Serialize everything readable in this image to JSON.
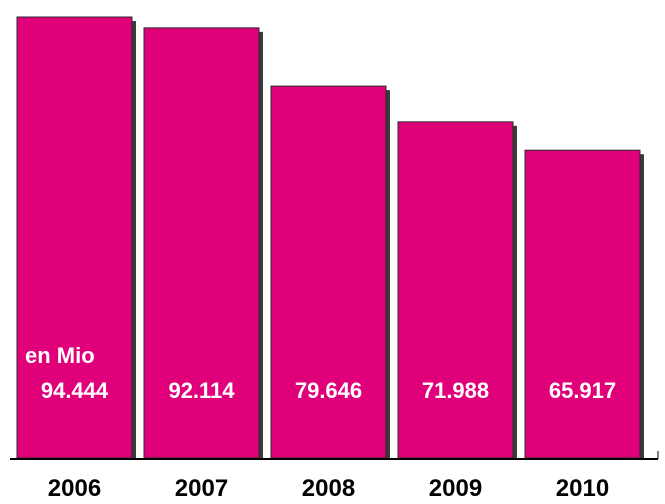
{
  "chart_data": {
    "type": "bar",
    "categories": [
      "2006",
      "2007",
      "2008",
      "2009",
      "2010"
    ],
    "values": [
      94.444,
      92.114,
      79.646,
      71.988,
      65.917
    ],
    "value_labels": [
      "94.444",
      "92.114",
      "79.646",
      "71.988",
      "65.917"
    ],
    "unit_label": "en Mio",
    "title": "",
    "xlabel": "",
    "ylabel": "",
    "ylim": [
      0,
      94.444
    ],
    "grid": false,
    "legend": "none",
    "bar_color": "#e0007a",
    "label_color": "#ffffff"
  }
}
